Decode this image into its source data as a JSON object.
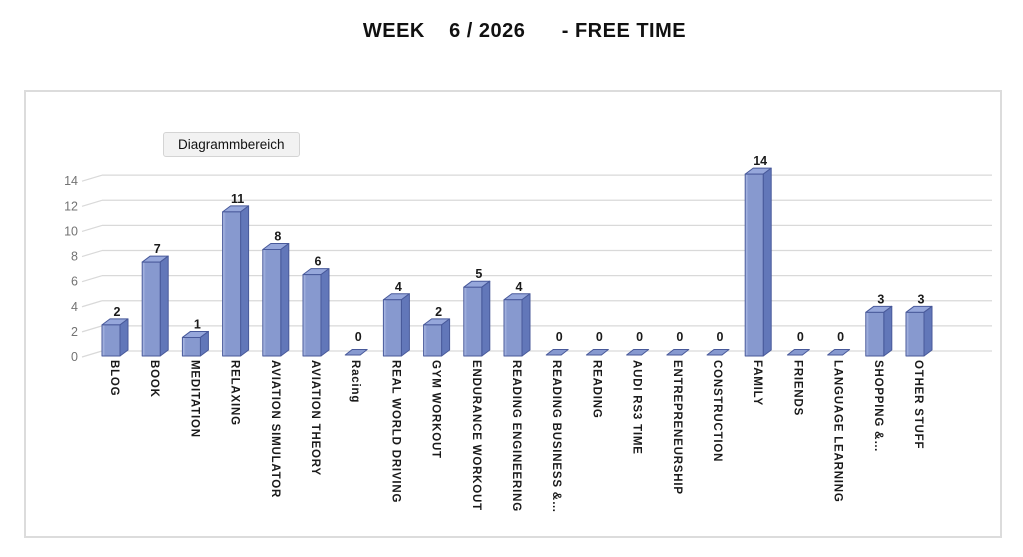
{
  "title": "WEEK    6 / 2026      - FREE TIME",
  "tooltip": "Diagrammbereich",
  "chart_data": {
    "type": "bar",
    "style": "3d-column",
    "title": "WEEK 6 / 2026 - FREE TIME",
    "categories": [
      "BLOG",
      "BOOK",
      "MEDITATION",
      "RELAXING",
      "AVIATION SIMULATOR",
      "AVIATION THEORY",
      "Racing",
      "REAL WORLD DRIVING",
      "GYM WORKOUT",
      "ENDURANCE WORKOUT",
      "READING ENGINEERING",
      "READING BUSINESS &…",
      "READING",
      "AUDI RS3 TIME",
      "ENTREPRENEURSHIP",
      "CONSTRUCTION",
      "FAMILY",
      "FRIENDS",
      "LANGUAGE LEARNING",
      "SHOPPING &…",
      "OTHER STUFF"
    ],
    "values": [
      2,
      7,
      1,
      11,
      8,
      6,
      0,
      4,
      2,
      5,
      4,
      0,
      0,
      0,
      0,
      0,
      14,
      0,
      0,
      3,
      3
    ],
    "data_labels": true,
    "xlabel": "",
    "ylabel": "",
    "ylim": [
      0,
      14
    ],
    "yticks": [
      0,
      2,
      4,
      6,
      8,
      10,
      12,
      14
    ],
    "grid": true,
    "legend": false,
    "colors": {
      "bar_front": "#8799cf",
      "bar_front_highlight": "#b3c0e8",
      "bar_side": "#6277b9",
      "bar_top": "#96a7db",
      "bar_outline": "#48599a",
      "gridline": "#d9d9d9",
      "axis_tick_text": "#737373",
      "label_text": "#1a1a1a"
    }
  }
}
